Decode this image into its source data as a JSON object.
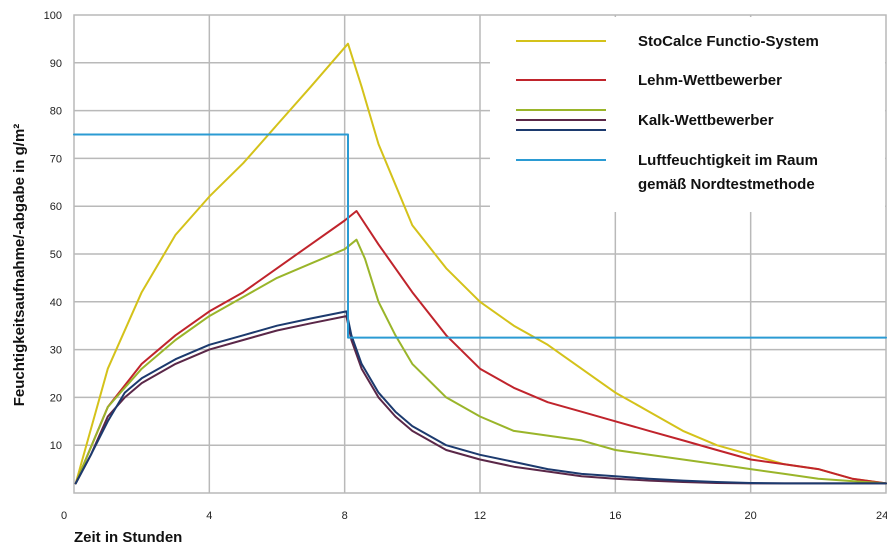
{
  "chart_data": {
    "type": "line",
    "xlabel": "Zeit in Stunden",
    "ylabel": "Feuchtigkeitsaufnahme/-abgabe in g/m²",
    "xlim": [
      0,
      24
    ],
    "ylim": [
      0,
      100
    ],
    "x_ticks": [
      0,
      4,
      8,
      12,
      16,
      20,
      24
    ],
    "y_ticks": [
      10,
      20,
      30,
      40,
      50,
      60,
      70,
      80,
      90,
      100
    ],
    "grid": true,
    "legend_position": "top-right",
    "series": [
      {
        "name": "StoCalce Functio-System",
        "color": "#d4c21a",
        "points": [
          [
            0.05,
            2
          ],
          [
            1,
            26
          ],
          [
            2,
            42
          ],
          [
            3,
            54
          ],
          [
            4,
            62
          ],
          [
            5,
            69
          ],
          [
            6,
            77
          ],
          [
            7,
            85
          ],
          [
            8.1,
            94
          ],
          [
            8.5,
            85
          ],
          [
            9,
            73
          ],
          [
            10,
            56
          ],
          [
            11,
            47
          ],
          [
            12,
            40
          ],
          [
            13,
            35
          ],
          [
            14,
            31
          ],
          [
            15,
            26
          ],
          [
            16,
            21
          ],
          [
            17,
            17
          ],
          [
            18,
            13
          ],
          [
            19,
            10
          ],
          [
            20,
            8
          ],
          [
            21,
            6
          ],
          [
            22,
            5
          ],
          [
            23,
            3
          ],
          [
            24,
            2
          ]
        ]
      },
      {
        "name": "Lehm-Wettbewerber",
        "color": "#c0242c",
        "points": [
          [
            0.05,
            2
          ],
          [
            1,
            18
          ],
          [
            2,
            27
          ],
          [
            3,
            33
          ],
          [
            4,
            38
          ],
          [
            5,
            42
          ],
          [
            6,
            47
          ],
          [
            7,
            52
          ],
          [
            8,
            57
          ],
          [
            8.35,
            59
          ],
          [
            9,
            52
          ],
          [
            10,
            42
          ],
          [
            11,
            33
          ],
          [
            12,
            26
          ],
          [
            13,
            22
          ],
          [
            14,
            19
          ],
          [
            15,
            17
          ],
          [
            16,
            15
          ],
          [
            17,
            13
          ],
          [
            18,
            11
          ],
          [
            19,
            9
          ],
          [
            20,
            7
          ],
          [
            21,
            6
          ],
          [
            22,
            5
          ],
          [
            23,
            3
          ],
          [
            24,
            2
          ]
        ]
      },
      {
        "name": "Kalk-Wettbewerber",
        "color": "#9ab52a",
        "points": [
          [
            0.05,
            2
          ],
          [
            1,
            18
          ],
          [
            2,
            26
          ],
          [
            3,
            32
          ],
          [
            4,
            37
          ],
          [
            5,
            41
          ],
          [
            6,
            45
          ],
          [
            7,
            48
          ],
          [
            8,
            51
          ],
          [
            8.35,
            53
          ],
          [
            8.6,
            49
          ],
          [
            9,
            40
          ],
          [
            9.5,
            33
          ],
          [
            10,
            27
          ],
          [
            11,
            20
          ],
          [
            12,
            16
          ],
          [
            13,
            13
          ],
          [
            14,
            12
          ],
          [
            15,
            11
          ],
          [
            16,
            9
          ],
          [
            17,
            8
          ],
          [
            18,
            7
          ],
          [
            19,
            6
          ],
          [
            20,
            5
          ],
          [
            21,
            4
          ],
          [
            22,
            3
          ],
          [
            23,
            2.5
          ],
          [
            24,
            2
          ]
        ]
      },
      {
        "name": "",
        "color": "#5a2748",
        "points": [
          [
            0.05,
            2
          ],
          [
            0.5,
            8
          ],
          [
            1,
            16
          ],
          [
            1.5,
            20
          ],
          [
            2,
            23
          ],
          [
            3,
            27
          ],
          [
            4,
            30
          ],
          [
            5,
            32
          ],
          [
            6,
            34
          ],
          [
            7,
            35.5
          ],
          [
            8.05,
            37
          ],
          [
            8.2,
            32
          ],
          [
            8.5,
            26
          ],
          [
            9,
            20
          ],
          [
            9.5,
            16
          ],
          [
            10,
            13
          ],
          [
            11,
            9
          ],
          [
            12,
            7
          ],
          [
            13,
            5.5
          ],
          [
            14,
            4.5
          ],
          [
            15,
            3.5
          ],
          [
            16,
            3
          ],
          [
            17,
            2.6
          ],
          [
            18,
            2.3
          ],
          [
            19,
            2.1
          ],
          [
            20,
            2
          ],
          [
            21,
            2
          ],
          [
            22,
            2
          ],
          [
            23,
            2
          ],
          [
            24,
            2
          ]
        ]
      },
      {
        "name": "",
        "color": "#1c3a6e",
        "points": [
          [
            0.05,
            2
          ],
          [
            0.5,
            8
          ],
          [
            1,
            15
          ],
          [
            1.5,
            21
          ],
          [
            2,
            24
          ],
          [
            3,
            28
          ],
          [
            4,
            31
          ],
          [
            5,
            33
          ],
          [
            6,
            35
          ],
          [
            7,
            36.5
          ],
          [
            8.05,
            38
          ],
          [
            8.2,
            33
          ],
          [
            8.5,
            27
          ],
          [
            9,
            21
          ],
          [
            9.5,
            17
          ],
          [
            10,
            14
          ],
          [
            11,
            10
          ],
          [
            12,
            8
          ],
          [
            13,
            6.5
          ],
          [
            14,
            5
          ],
          [
            15,
            4
          ],
          [
            16,
            3.5
          ],
          [
            17,
            3
          ],
          [
            18,
            2.6
          ],
          [
            19,
            2.3
          ],
          [
            20,
            2.1
          ],
          [
            21,
            2
          ],
          [
            22,
            2
          ],
          [
            23,
            2
          ],
          [
            24,
            2
          ]
        ]
      },
      {
        "name": "",
        "color": "#2b9bd3",
        "points": [
          [
            0,
            75
          ],
          [
            8.1,
            75
          ],
          [
            8.1,
            32.5
          ],
          [
            24,
            32.5
          ]
        ]
      }
    ],
    "legend": [
      {
        "label": "StoCalce Functio-System",
        "colors": [
          "#d4c21a"
        ]
      },
      {
        "label": "Lehm-Wettbewerber",
        "colors": [
          "#c0242c"
        ]
      },
      {
        "label": "Kalk-Wettbewerber",
        "colors": [
          "#9ab52a",
          "#5a2748",
          "#1c3a6e"
        ]
      },
      {
        "label_lines": [
          "Luftfeuchtigkeit im Raum",
          "gemäß Nordtestmethode"
        ],
        "colors": [
          "#2b9bd3"
        ]
      }
    ]
  }
}
